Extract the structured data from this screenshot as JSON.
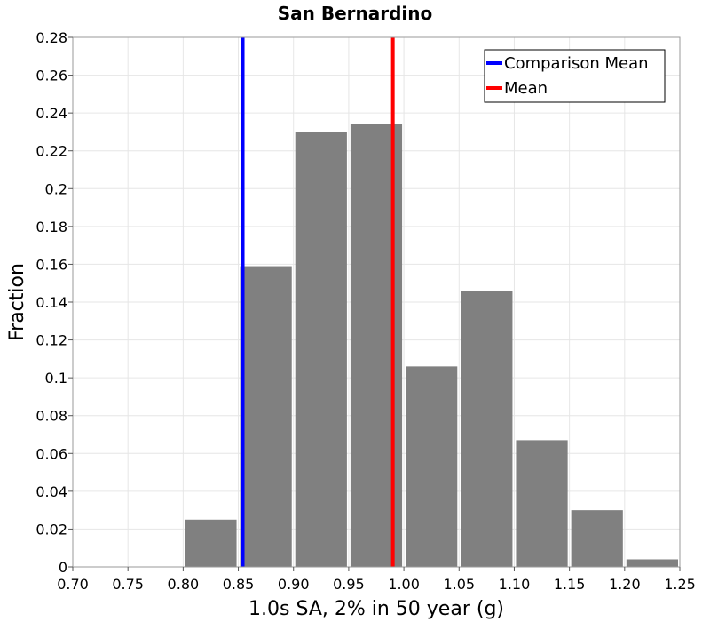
{
  "chart_data": {
    "type": "bar",
    "title": "San Bernardino",
    "xlabel": "1.0s SA, 2% in 50 year (g)",
    "ylabel": "Fraction",
    "xlim": [
      0.7,
      1.25
    ],
    "ylim": [
      0,
      0.28
    ],
    "xticks": [
      "0.70",
      "0.75",
      "0.80",
      "0.85",
      "0.90",
      "0.95",
      "1.00",
      "1.05",
      "1.10",
      "1.15",
      "1.20",
      "1.25"
    ],
    "yticks": [
      "0",
      "0.02",
      "0.04",
      "0.06",
      "0.08",
      "0.1",
      "0.12",
      "0.14",
      "0.16",
      "0.18",
      "0.2",
      "0.22",
      "0.24",
      "0.26",
      "0.28"
    ],
    "bin_width": 0.05,
    "bins": [
      {
        "start": 0.8,
        "end": 0.85,
        "value": 0.025
      },
      {
        "start": 0.85,
        "end": 0.9,
        "value": 0.159
      },
      {
        "start": 0.9,
        "end": 0.95,
        "value": 0.23
      },
      {
        "start": 0.95,
        "end": 1.0,
        "value": 0.234
      },
      {
        "start": 1.0,
        "end": 1.05,
        "value": 0.106
      },
      {
        "start": 1.05,
        "end": 1.1,
        "value": 0.146
      },
      {
        "start": 1.1,
        "end": 1.15,
        "value": 0.067
      },
      {
        "start": 1.15,
        "end": 1.2,
        "value": 0.03
      },
      {
        "start": 1.2,
        "end": 1.25,
        "value": 0.004
      }
    ],
    "bar_color": "#808080",
    "reference_lines": [
      {
        "name": "Comparison Mean",
        "x": 0.854,
        "color": "#0000ff"
      },
      {
        "name": "Mean",
        "x": 0.99,
        "color": "#ff0000"
      }
    ],
    "legend_position": "top-right",
    "grid": true
  }
}
